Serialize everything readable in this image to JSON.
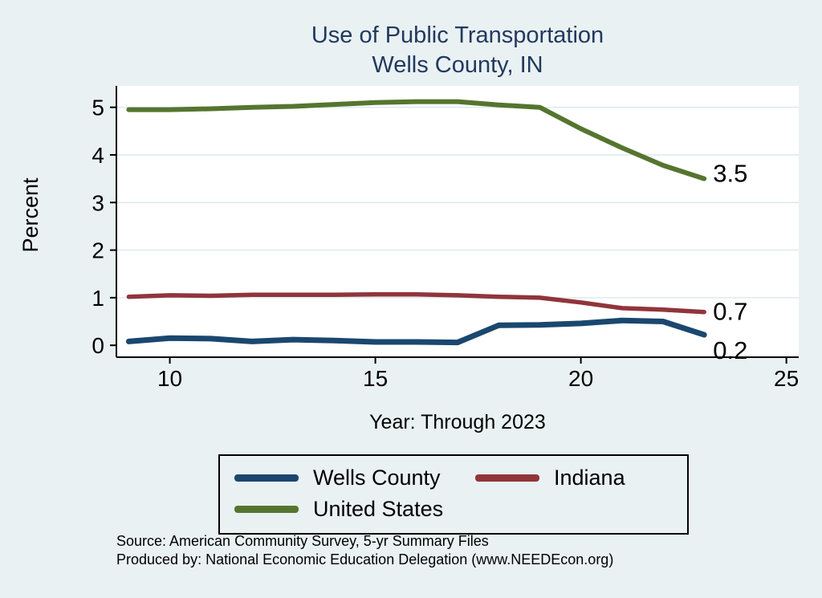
{
  "title": {
    "line1": "Use of Public Transportation",
    "line2": "Wells County, IN"
  },
  "ylabel": "Percent",
  "xlabel": "Year: Through 2023",
  "source": {
    "line1": "Source: American Community Survey, 5-yr Summary Files",
    "line2": "Produced by: National Economic Education Delegation (www.NEEDEcon.org)"
  },
  "colors": {
    "background": "#eaf1f3",
    "plot_background": "#ffffff",
    "title": "#22395f",
    "axis": "#000000",
    "gridline": "#dcebf0"
  },
  "chart_data": {
    "type": "line",
    "x": [
      9,
      10,
      11,
      12,
      13,
      14,
      15,
      16,
      17,
      18,
      19,
      20,
      21,
      22,
      23
    ],
    "series": [
      {
        "name": "Wells County",
        "color": "#1a476f",
        "values": [
          0.08,
          0.15,
          0.14,
          0.08,
          0.12,
          0.1,
          0.07,
          0.07,
          0.06,
          0.42,
          0.43,
          0.46,
          0.52,
          0.5,
          0.22
        ],
        "end_label": "0.2"
      },
      {
        "name": "Indiana",
        "color": "#90353b",
        "values": [
          1.02,
          1.05,
          1.04,
          1.06,
          1.06,
          1.06,
          1.07,
          1.07,
          1.05,
          1.02,
          1.0,
          0.9,
          0.78,
          0.75,
          0.7
        ],
        "end_label": "0.7"
      },
      {
        "name": "United States",
        "color": "#55752f",
        "values": [
          4.95,
          4.95,
          4.97,
          5.0,
          5.02,
          5.06,
          5.1,
          5.12,
          5.12,
          5.05,
          5.0,
          4.55,
          4.15,
          3.78,
          3.5
        ],
        "end_label": "3.5"
      }
    ],
    "xlim": [
      8.7,
      25.3
    ],
    "ylim": [
      -0.25,
      5.45
    ],
    "xticks": [
      10,
      15,
      20,
      25
    ],
    "yticks": [
      0,
      1,
      2,
      3,
      4,
      5
    ],
    "grid": true,
    "legend_position": "bottom"
  }
}
